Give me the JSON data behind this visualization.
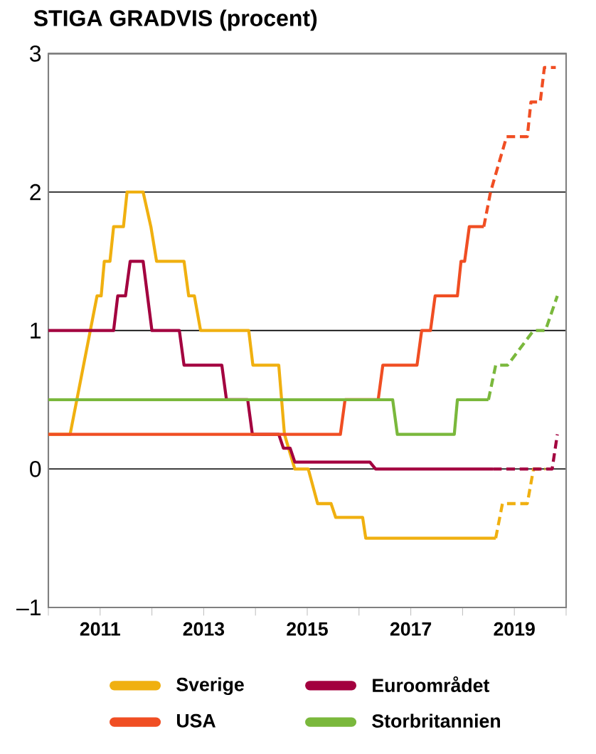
{
  "chart_data": {
    "type": "line",
    "title": "STIGA GRADVIS (procent)",
    "xlim": [
      2010,
      2020
    ],
    "ylim": [
      -1,
      3
    ],
    "xticks": [
      {
        "value": 2010,
        "label": null
      },
      2011,
      {
        "value": 2012,
        "label": null
      },
      2013,
      {
        "value": 2014,
        "label": null
      },
      2015,
      {
        "value": 2016,
        "label": null
      },
      2017,
      {
        "value": 2018,
        "label": null
      },
      2019,
      {
        "value": 2020,
        "label": null
      }
    ],
    "yticks": [
      {
        "value": -1,
        "label": "–1"
      },
      0,
      1,
      2,
      3
    ],
    "grid": "y",
    "legend": "bottom",
    "marker": "none",
    "series": [
      {
        "name": "Sverige",
        "color": "#f0b010",
        "line_style": "solid",
        "x": [
          2010.0,
          2010.42,
          2010.94,
          2011.02,
          2011.08,
          2011.19,
          2011.26,
          2011.45,
          2011.52,
          2011.83,
          2011.98,
          2012.09,
          2012.62,
          2012.71,
          2012.82,
          2012.94,
          2013.87,
          2013.95,
          2014.45,
          2014.56,
          2014.76,
          2015.02,
          2015.2,
          2015.46,
          2015.55,
          2016.07,
          2016.13,
          2018.64
        ],
        "values": [
          0.25,
          0.25,
          1.25,
          1.25,
          1.5,
          1.5,
          1.75,
          1.75,
          2.0,
          2.0,
          1.75,
          1.5,
          1.5,
          1.25,
          1.25,
          1.0,
          1.0,
          0.75,
          0.75,
          0.25,
          0,
          0,
          -0.25,
          -0.25,
          -0.35,
          -0.35,
          -0.5,
          -0.5
        ]
      },
      {
        "name": "Euroområdet",
        "color": "#a3003f",
        "line_style": "solid",
        "x": [
          2010.0,
          2011.26,
          2011.34,
          2011.49,
          2011.58,
          2011.83,
          2012.0,
          2012.53,
          2012.62,
          2013.35,
          2013.44,
          2013.85,
          2013.94,
          2014.45,
          2014.54,
          2014.67,
          2014.76,
          2016.21,
          2016.32,
          2018.59
        ],
        "values": [
          1.0,
          1.0,
          1.25,
          1.25,
          1.5,
          1.5,
          1.0,
          1.0,
          0.75,
          0.75,
          0.5,
          0.5,
          0.25,
          0.25,
          0.15,
          0.15,
          0.05,
          0.05,
          0,
          0
        ]
      },
      {
        "name": "USA",
        "color": "#f04e23",
        "line_style": "solid",
        "x": [
          2010.0,
          2015.64,
          2015.73,
          2016.37,
          2016.46,
          2017.12,
          2017.21,
          2017.38,
          2017.47,
          2017.9,
          2017.97,
          2018.04,
          2018.13,
          2018.41
        ],
        "values": [
          0.25,
          0.25,
          0.5,
          0.5,
          0.75,
          0.75,
          1.0,
          1.0,
          1.25,
          1.25,
          1.5,
          1.5,
          1.75,
          1.75
        ]
      },
      {
        "name": "Storbritannien",
        "color": "#7ab83c",
        "line_style": "solid",
        "x": [
          2010.0,
          2016.65,
          2016.74,
          2017.84,
          2017.9,
          2018.5
        ],
        "values": [
          0.5,
          0.5,
          0.25,
          0.25,
          0.5,
          0.5
        ]
      },
      {
        "color": "#f0b010",
        "line_style": "dashed",
        "x": [
          2018.64,
          2018.77,
          2019.25,
          2019.37,
          2019.6
        ],
        "values": [
          -0.5,
          -0.25,
          -0.25,
          0,
          0
        ]
      },
      {
        "color": "#a3003f",
        "line_style": "dashed",
        "x": [
          2018.59,
          2019.73,
          2019.83
        ],
        "values": [
          0,
          0,
          0.25
        ]
      },
      {
        "color": "#f04e23",
        "line_style": "dashed",
        "x": [
          2018.41,
          2018.54,
          2018.85,
          2019.25,
          2019.32,
          2019.5,
          2019.58,
          2019.8
        ],
        "values": [
          1.75,
          2.0,
          2.4,
          2.4,
          2.65,
          2.65,
          2.9,
          2.9
        ]
      },
      {
        "color": "#7ab83c",
        "line_style": "dashed",
        "x": [
          2018.5,
          2018.64,
          2018.87,
          2019.37,
          2019.6,
          2019.83
        ],
        "values": [
          0.5,
          0.75,
          0.75,
          1.0,
          1.0,
          1.25
        ]
      }
    ]
  }
}
